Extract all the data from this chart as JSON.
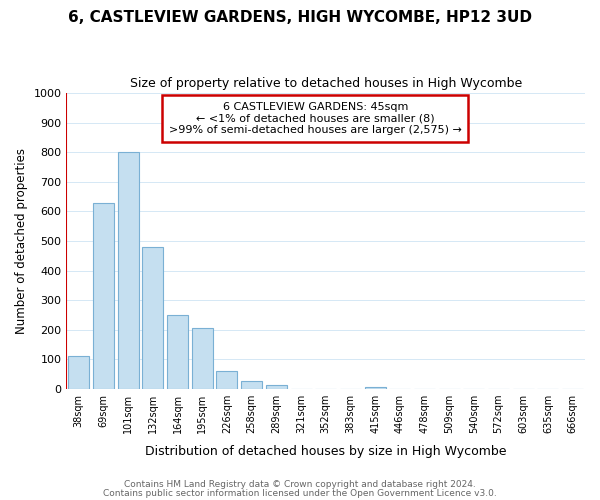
{
  "title": "6, CASTLEVIEW GARDENS, HIGH WYCOMBE, HP12 3UD",
  "subtitle": "Size of property relative to detached houses in High Wycombe",
  "xlabel": "Distribution of detached houses by size in High Wycombe",
  "ylabel": "Number of detached properties",
  "bar_labels": [
    "38sqm",
    "69sqm",
    "101sqm",
    "132sqm",
    "164sqm",
    "195sqm",
    "226sqm",
    "258sqm",
    "289sqm",
    "321sqm",
    "352sqm",
    "383sqm",
    "415sqm",
    "446sqm",
    "478sqm",
    "509sqm",
    "540sqm",
    "572sqm",
    "603sqm",
    "635sqm",
    "666sqm"
  ],
  "bar_values": [
    110,
    630,
    800,
    480,
    250,
    205,
    60,
    28,
    15,
    0,
    0,
    0,
    8,
    0,
    0,
    0,
    0,
    0,
    0,
    0,
    0
  ],
  "bar_color": "#c5dff0",
  "bar_edge_color": "#7ab0d4",
  "red_line_color": "#cc0000",
  "ylim": [
    0,
    1000
  ],
  "yticks": [
    0,
    100,
    200,
    300,
    400,
    500,
    600,
    700,
    800,
    900,
    1000
  ],
  "annotation_box_text_line1": "6 CASTLEVIEW GARDENS: 45sqm",
  "annotation_box_text_line2": "← <1% of detached houses are smaller (8)",
  "annotation_box_text_line3": ">99% of semi-detached houses are larger (2,575) →",
  "footer_line1": "Contains HM Land Registry data © Crown copyright and database right 2024.",
  "footer_line2": "Contains public sector information licensed under the Open Government Licence v3.0.",
  "title_fontsize": 11,
  "subtitle_fontsize": 9,
  "grid_color": "#d5e8f5",
  "background_color": "#ffffff",
  "annotation_box_facecolor": "#ffffff",
  "annotation_box_edgecolor": "#cc0000"
}
